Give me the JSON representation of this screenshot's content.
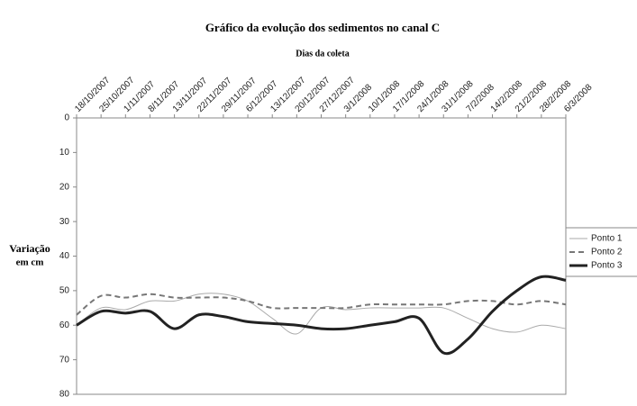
{
  "chart_data": {
    "type": "line",
    "title": "Gráfico da evolução dos sedimentos no canal C",
    "x_label": "Dias da coleta",
    "y_label_lines": [
      "Variação",
      "em cm"
    ],
    "categories": [
      "18/10/2007",
      "25/10/2007",
      "1/11/2007",
      "8/11/2007",
      "13/11/2007",
      "22/11/2007",
      "29/11/2007",
      "6/12/2007",
      "13/12/2007",
      "20/12/2007",
      "27/12/2007",
      "3/1/2008",
      "10/1/2008",
      "17/1/2008",
      "24/1/2008",
      "31/1/2008",
      "7/2/2008",
      "14/2/2008",
      "21/2/2008",
      "28/2/2008",
      "6/3/2008"
    ],
    "series": [
      {
        "name": "Ponto 1",
        "color": "#aaaaaa",
        "values": [
          60,
          55,
          55.5,
          53,
          53,
          51,
          51,
          53,
          58,
          62.5,
          55,
          55.5,
          55,
          55,
          55,
          55,
          58,
          61,
          62,
          60,
          61
        ]
      },
      {
        "name": "Ponto 2",
        "color": "#777777",
        "values": [
          57,
          51.5,
          52,
          51,
          52,
          52,
          52,
          53,
          55,
          55,
          55,
          55,
          54,
          54,
          54,
          54,
          53,
          53,
          54,
          53,
          54
        ]
      },
      {
        "name": "Ponto 3",
        "color": "#222222",
        "values": [
          60,
          56,
          56.5,
          56,
          61,
          57,
          57.5,
          59,
          59.5,
          60,
          61,
          61,
          60,
          59,
          58,
          68,
          64,
          56,
          50,
          46,
          47
        ]
      }
    ],
    "ylim": [
      0,
      80
    ],
    "yticks": [
      0,
      10,
      20,
      30,
      40,
      50,
      60,
      70,
      80
    ],
    "y_inverted": true
  }
}
